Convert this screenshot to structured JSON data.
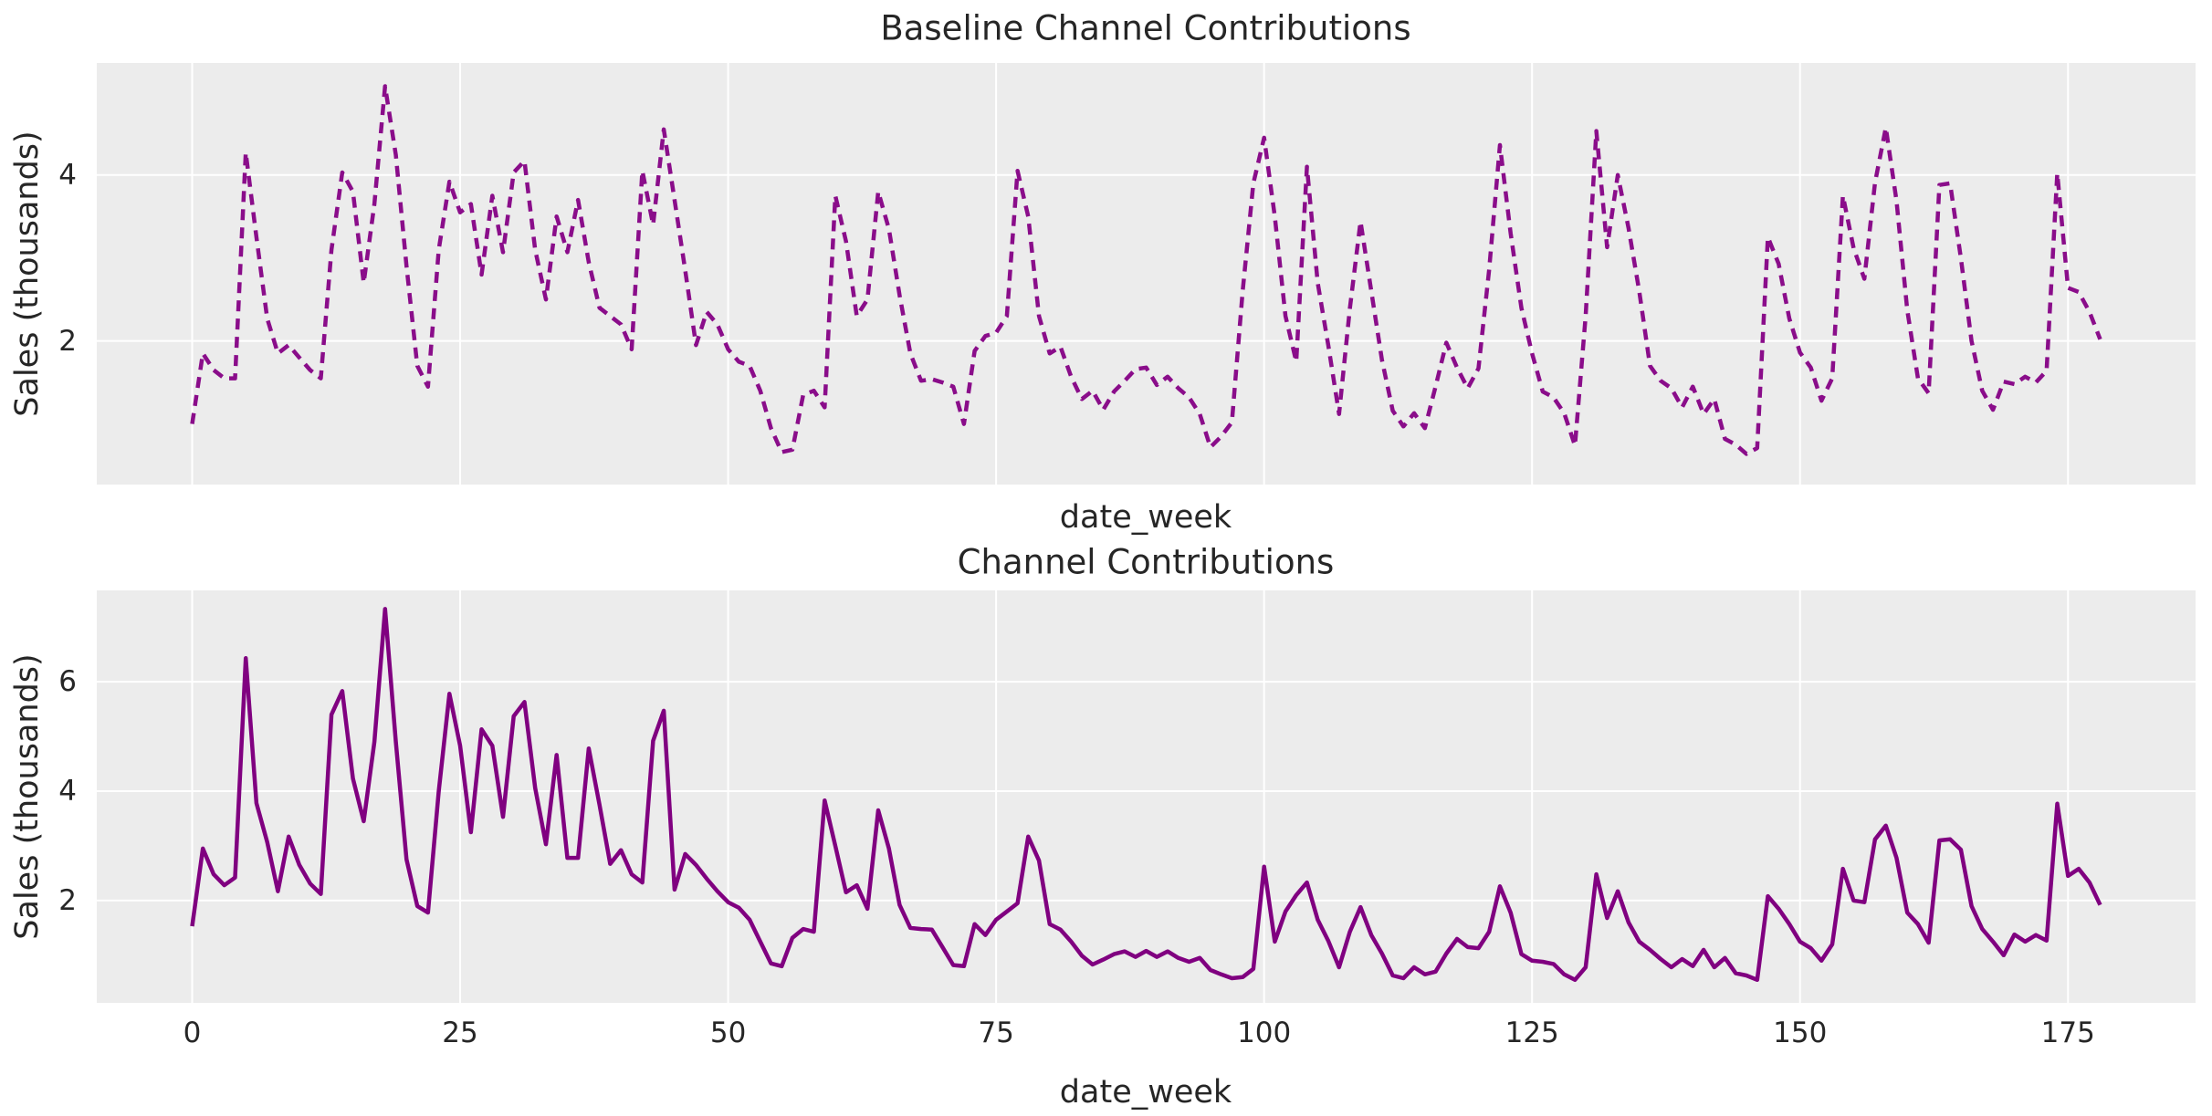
{
  "figure": {
    "background": "#ffffff",
    "plot_background": "#ececec",
    "grid_color": "#ffffff",
    "text_color": "#262626"
  },
  "chart_data": [
    {
      "type": "line",
      "title": "Baseline Channel Contributions",
      "xlabel": "date_week",
      "ylabel": "Sales (thousands)",
      "line_style": "dashed",
      "color": "#8a0d8a",
      "legend": "none",
      "grid": true,
      "x_start": 0,
      "x_step": 1,
      "xlim": [
        -8.9,
        186.9
      ],
      "ylim": [
        0.27,
        5.35
      ],
      "yticks": [
        2,
        4
      ],
      "xticks": [],
      "values": [
        1.0,
        1.85,
        1.65,
        1.55,
        1.55,
        4.27,
        3.25,
        2.27,
        1.85,
        1.95,
        1.8,
        1.65,
        1.55,
        3.1,
        4.03,
        3.8,
        2.7,
        3.65,
        5.07,
        4.24,
        2.9,
        1.7,
        1.45,
        3.1,
        3.92,
        3.55,
        3.65,
        2.8,
        3.75,
        3.07,
        4.03,
        4.17,
        3.1,
        2.5,
        3.5,
        3.07,
        3.7,
        2.95,
        2.4,
        2.3,
        2.2,
        1.9,
        4.05,
        3.4,
        4.55,
        3.7,
        2.85,
        1.95,
        2.35,
        2.2,
        1.9,
        1.75,
        1.7,
        1.4,
        0.95,
        0.66,
        0.69,
        1.35,
        1.4,
        1.2,
        3.75,
        3.2,
        2.3,
        2.5,
        3.8,
        3.35,
        2.55,
        1.85,
        1.52,
        1.54,
        1.5,
        1.45,
        1.0,
        1.88,
        2.06,
        2.1,
        2.3,
        4.05,
        3.5,
        2.3,
        1.85,
        1.93,
        1.57,
        1.3,
        1.4,
        1.17,
        1.39,
        1.52,
        1.66,
        1.68,
        1.47,
        1.57,
        1.43,
        1.32,
        1.12,
        0.72,
        0.85,
        1.02,
        2.6,
        3.9,
        4.45,
        3.5,
        2.3,
        1.75,
        4.1,
        2.7,
        1.94,
        1.12,
        2.39,
        3.44,
        2.6,
        1.77,
        1.16,
        0.97,
        1.13,
        0.95,
        1.45,
        1.98,
        1.68,
        1.43,
        1.67,
        2.86,
        4.36,
        3.3,
        2.4,
        1.85,
        1.39,
        1.32,
        1.13,
        0.74,
        2.3,
        4.53,
        3.13,
        4.0,
        3.36,
        2.6,
        1.7,
        1.52,
        1.43,
        1.2,
        1.45,
        1.12,
        1.3,
        0.82,
        0.75,
        0.64,
        0.71,
        3.25,
        2.93,
        2.27,
        1.86,
        1.68,
        1.28,
        1.55,
        3.75,
        3.12,
        2.75,
        3.91,
        4.57,
        3.69,
        2.37,
        1.55,
        1.37,
        3.88,
        3.9,
        3.0,
        2.0,
        1.4,
        1.17,
        1.51,
        1.48,
        1.57,
        1.5,
        1.64,
        4.02,
        2.64,
        2.59,
        2.35,
        2.02
      ]
    },
    {
      "type": "line",
      "title": "Channel Contributions",
      "xlabel": "date_week",
      "ylabel": "Sales (thousands)",
      "line_style": "solid",
      "color": "#800080",
      "legend": "none",
      "grid": true,
      "x_start": 0,
      "x_step": 1,
      "xlim": [
        -8.9,
        186.9
      ],
      "ylim": [
        0.13,
        7.67
      ],
      "yticks": [
        2,
        4,
        6
      ],
      "xticks": [
        0,
        25,
        50,
        75,
        100,
        125,
        150,
        175
      ],
      "values": [
        1.53,
        2.95,
        2.48,
        2.28,
        2.42,
        6.43,
        3.78,
        3.07,
        2.17,
        3.17,
        2.65,
        2.31,
        2.12,
        5.4,
        5.83,
        4.23,
        3.45,
        4.9,
        7.33,
        4.9,
        2.75,
        1.9,
        1.78,
        4.0,
        5.78,
        4.83,
        3.25,
        5.13,
        4.83,
        3.53,
        5.37,
        5.63,
        4.06,
        3.03,
        4.66,
        2.78,
        2.78,
        4.78,
        3.75,
        2.67,
        2.92,
        2.48,
        2.33,
        4.92,
        5.47,
        2.2,
        2.85,
        2.65,
        2.4,
        2.17,
        1.97,
        1.87,
        1.65,
        1.25,
        0.85,
        0.8,
        1.32,
        1.48,
        1.43,
        3.83,
        3.0,
        2.15,
        2.28,
        1.85,
        3.65,
        2.95,
        1.92,
        1.5,
        1.48,
        1.47,
        1.15,
        0.82,
        0.8,
        1.57,
        1.37,
        1.65,
        1.8,
        1.95,
        3.17,
        2.73,
        1.57,
        1.47,
        1.25,
        0.99,
        0.83,
        0.92,
        1.02,
        1.07,
        0.97,
        1.08,
        0.97,
        1.07,
        0.95,
        0.88,
        0.95,
        0.73,
        0.65,
        0.58,
        0.6,
        0.75,
        2.62,
        1.25,
        1.8,
        2.1,
        2.33,
        1.65,
        1.26,
        0.78,
        1.43,
        1.88,
        1.37,
        1.03,
        0.63,
        0.58,
        0.78,
        0.65,
        0.7,
        1.03,
        1.3,
        1.15,
        1.13,
        1.43,
        2.26,
        1.78,
        1.02,
        0.9,
        0.88,
        0.84,
        0.65,
        0.55,
        0.78,
        2.48,
        1.68,
        2.17,
        1.6,
        1.25,
        1.1,
        0.93,
        0.78,
        0.93,
        0.8,
        1.1,
        0.78,
        0.95,
        0.67,
        0.63,
        0.55,
        2.08,
        1.85,
        1.57,
        1.25,
        1.13,
        0.9,
        1.2,
        2.58,
        2.0,
        1.97,
        3.12,
        3.37,
        2.78,
        1.78,
        1.57,
        1.23,
        3.1,
        3.12,
        2.93,
        1.9,
        1.48,
        1.25,
        1.0,
        1.38,
        1.25,
        1.37,
        1.27,
        3.77,
        2.45,
        2.58,
        2.33,
        1.92
      ]
    }
  ]
}
